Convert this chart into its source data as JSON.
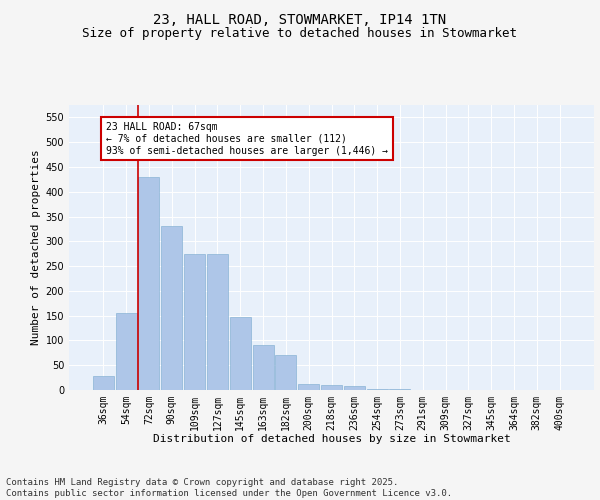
{
  "title1": "23, HALL ROAD, STOWMARKET, IP14 1TN",
  "title2": "Size of property relative to detached houses in Stowmarket",
  "xlabel": "Distribution of detached houses by size in Stowmarket",
  "ylabel": "Number of detached properties",
  "categories": [
    "36sqm",
    "54sqm",
    "72sqm",
    "90sqm",
    "109sqm",
    "127sqm",
    "145sqm",
    "163sqm",
    "182sqm",
    "200sqm",
    "218sqm",
    "236sqm",
    "254sqm",
    "273sqm",
    "291sqm",
    "309sqm",
    "327sqm",
    "345sqm",
    "364sqm",
    "382sqm",
    "400sqm"
  ],
  "values": [
    28,
    155,
    430,
    330,
    275,
    275,
    147,
    90,
    70,
    12,
    11,
    8,
    3,
    2,
    0,
    0,
    0,
    0,
    0,
    0,
    0
  ],
  "bar_color": "#aec6e8",
  "bar_edge_color": "#7aaacf",
  "vline_color": "#cc0000",
  "annotation_text": "23 HALL ROAD: 67sqm\n← 7% of detached houses are smaller (112)\n93% of semi-detached houses are larger (1,446) →",
  "annotation_box_color": "#ffffff",
  "annotation_box_edge_color": "#cc0000",
  "ylim": [
    0,
    575
  ],
  "yticks": [
    0,
    50,
    100,
    150,
    200,
    250,
    300,
    350,
    400,
    450,
    500,
    550
  ],
  "background_color": "#e8f0fa",
  "grid_color": "#ffffff",
  "footer": "Contains HM Land Registry data © Crown copyright and database right 2025.\nContains public sector information licensed under the Open Government Licence v3.0.",
  "title1_fontsize": 10,
  "title2_fontsize": 9,
  "xlabel_fontsize": 8,
  "ylabel_fontsize": 8,
  "tick_fontsize": 7,
  "footer_fontsize": 6.5,
  "ann_fontsize": 7
}
